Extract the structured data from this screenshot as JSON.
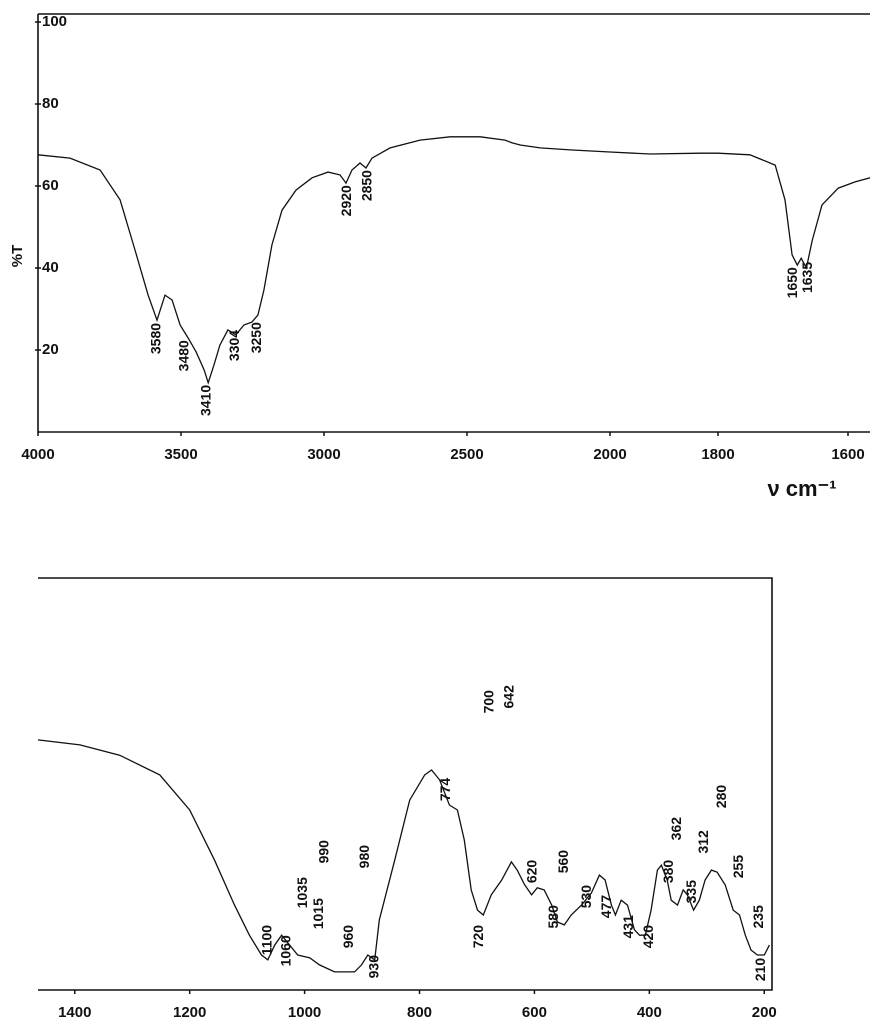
{
  "chart_data": [
    {
      "type": "line",
      "y_label": "%T",
      "x_label": "ν cm⁻¹",
      "xlim": [
        4000,
        1566
      ],
      "xticks": [
        4000,
        3500,
        3000,
        2500,
        2000,
        1800,
        1600
      ],
      "ylim": [
        0,
        100
      ],
      "yticks": [
        20,
        40,
        60,
        80,
        100
      ],
      "color": "#111",
      "x": [
        4000,
        3888,
        3783,
        3713,
        3661,
        3615,
        3584,
        3556,
        3531,
        3503,
        3475,
        3447,
        3419,
        3405,
        3385,
        3364,
        3336,
        3308,
        3280,
        3252,
        3231,
        3210,
        3182,
        3147,
        3098,
        3042,
        2986,
        2944,
        2923,
        2902,
        2874,
        2853,
        2832,
        2769,
        2664,
        2559,
        2454,
        2367,
        2342,
        2314,
        2244,
        2140,
        2000,
        1926,
        1833,
        1800,
        1751,
        1712,
        1697,
        1686,
        1678,
        1672,
        1664,
        1655,
        1640,
        1615,
        1589,
        1566
      ],
      "values": [
        67.6,
        66.8,
        63.9,
        56.6,
        44.4,
        33.4,
        27.3,
        33.4,
        32.2,
        26.1,
        22.9,
        19.5,
        15.1,
        12.0,
        16.3,
        21.2,
        24.9,
        23.7,
        26.1,
        26.8,
        28.5,
        34.6,
        45.6,
        54.1,
        59.0,
        62.0,
        63.4,
        62.7,
        60.7,
        63.9,
        65.6,
        64.4,
        66.8,
        69.3,
        71.2,
        72.0,
        72.0,
        71.2,
        70.5,
        70.0,
        69.3,
        68.8,
        68.3,
        67.8,
        68.0,
        68.0,
        67.6,
        65.1,
        56.6,
        43.2,
        40.7,
        42.4,
        40.0,
        46.8,
        55.4,
        59.5,
        61.0,
        62.0
      ],
      "annotations": [
        {
          "text": "3580",
          "x": 3584,
          "y": 26.6
        },
        {
          "text": "3480",
          "x": 3486,
          "y": 22.4
        },
        {
          "text": "3410",
          "x": 3409,
          "y": 11.5
        },
        {
          "text": "3304",
          "x": 3311,
          "y": 24.9
        },
        {
          "text": "3250",
          "x": 3234,
          "y": 26.8
        },
        {
          "text": "2920",
          "x": 2919,
          "y": 60.2
        },
        {
          "text": "2850",
          "x": 2846,
          "y": 63.9
        },
        {
          "text": "1650",
          "x": 1684,
          "y": 40.2
        },
        {
          "text": "1635",
          "x": 1661,
          "y": 41.5
        }
      ]
    },
    {
      "type": "line",
      "xlim": [
        1464,
        190
      ],
      "xticks": [
        1400,
        1200,
        1000,
        800,
        600,
        400,
        200
      ],
      "ylim": [
        0,
        100
      ],
      "color": "#111",
      "x": [
        1464,
        1391,
        1322,
        1252,
        1200,
        1157,
        1122,
        1096,
        1075,
        1064,
        1052,
        1040,
        1026,
        1012,
        991,
        974,
        948,
        913,
        901,
        890,
        878,
        870,
        843,
        817,
        791,
        779,
        765,
        748,
        734,
        722,
        710,
        699,
        689,
        675,
        657,
        640,
        630,
        617,
        605,
        595,
        583,
        570,
        560,
        548,
        536,
        518,
        501,
        487,
        477,
        466,
        459,
        449,
        438,
        426,
        417,
        407,
        397,
        386,
        379,
        369,
        362,
        351,
        341,
        334,
        323,
        313,
        303,
        292,
        282,
        268,
        254,
        243,
        233,
        223,
        212,
        200,
        191
      ],
      "values": [
        60.7,
        59.5,
        57.0,
        52.2,
        43.7,
        31.6,
        20.6,
        13.3,
        8.5,
        7.3,
        10.9,
        13.3,
        10.9,
        8.5,
        7.8,
        6.1,
        4.4,
        4.4,
        6.1,
        8.5,
        7.3,
        17.0,
        31.6,
        46.1,
        52.2,
        53.4,
        51.0,
        44.9,
        43.7,
        36.4,
        24.3,
        19.4,
        18.2,
        23.1,
        26.7,
        31.1,
        29.1,
        25.5,
        23.1,
        24.8,
        24.3,
        20.6,
        16.5,
        15.8,
        18.2,
        20.6,
        23.5,
        27.9,
        26.7,
        20.6,
        18.2,
        21.8,
        20.6,
        14.6,
        13.3,
        13.3,
        19.4,
        29.1,
        30.3,
        26.7,
        21.8,
        20.6,
        24.3,
        23.1,
        19.4,
        21.8,
        26.7,
        29.1,
        28.6,
        25.5,
        19.4,
        18.2,
        13.3,
        9.7,
        8.5,
        8.5,
        10.9
      ],
      "annotations": [
        {
          "text": "1100",
          "x": 1064,
          "y": 15.8
        },
        {
          "text": "1060",
          "x": 1031,
          "y": 13.3
        },
        {
          "text": "1035",
          "x": 1002,
          "y": 27.4
        },
        {
          "text": "1015",
          "x": 974,
          "y": 22.3
        },
        {
          "text": "990",
          "x": 965,
          "y": 36.4
        },
        {
          "text": "960",
          "x": 922,
          "y": 15.8
        },
        {
          "text": "980",
          "x": 894,
          "y": 35.2
        },
        {
          "text": "930",
          "x": 878,
          "y": 8.5
        },
        {
          "text": "774",
          "x": 753,
          "y": 51.5
        },
        {
          "text": "720",
          "x": 696,
          "y": 15.8
        },
        {
          "text": "700",
          "x": 678,
          "y": 72.8
        },
        {
          "text": "642",
          "x": 643,
          "y": 74.0
        },
        {
          "text": "620",
          "x": 603,
          "y": 31.6
        },
        {
          "text": "580",
          "x": 565,
          "y": 20.6
        },
        {
          "text": "560",
          "x": 548,
          "y": 34.0
        },
        {
          "text": "530",
          "x": 508,
          "y": 25.5
        },
        {
          "text": "477",
          "x": 473,
          "y": 23.1
        },
        {
          "text": "431",
          "x": 435,
          "y": 18.2
        },
        {
          "text": "420",
          "x": 400,
          "y": 15.8
        },
        {
          "text": "380",
          "x": 365,
          "y": 31.6
        },
        {
          "text": "362",
          "x": 351,
          "y": 42.0
        },
        {
          "text": "335",
          "x": 325,
          "y": 26.7
        },
        {
          "text": "312",
          "x": 304,
          "y": 38.8
        },
        {
          "text": "280",
          "x": 273,
          "y": 49.8
        },
        {
          "text": "255",
          "x": 243,
          "y": 32.8
        },
        {
          "text": "235",
          "x": 209,
          "y": 20.6
        },
        {
          "text": "210",
          "x": 205,
          "y": 7.8
        }
      ]
    }
  ]
}
